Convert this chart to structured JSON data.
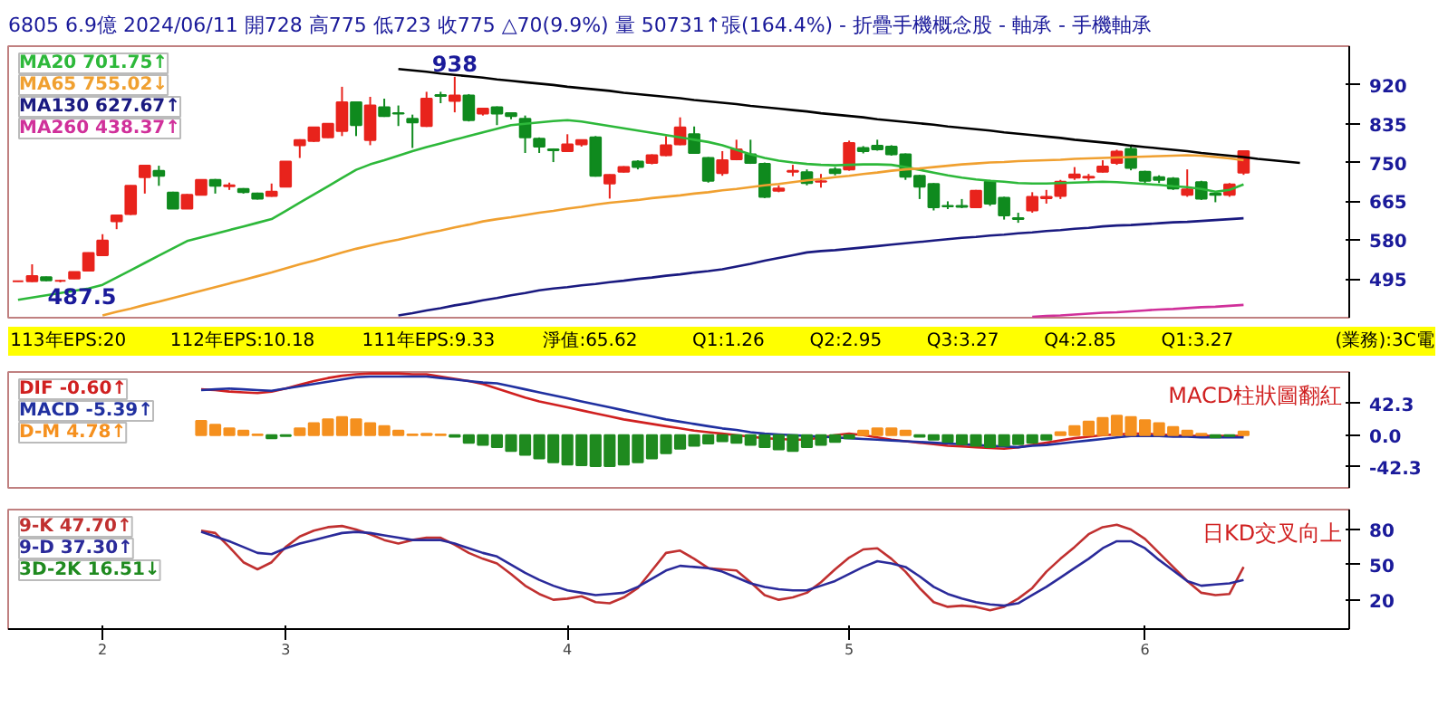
{
  "chart_data": [
    {
      "type": "candlestick",
      "title": "6805 6.9億 2024/06/11 開728 高775 低723 收775 △70(9.9%) 量 50731↑張(164.4%) - 折疊手機概念股 - 軸承 - 手機軸承",
      "categories": [
        null,
        null,
        null,
        null,
        null,
        null,
        "2",
        null,
        null,
        null,
        null,
        null,
        null,
        null,
        null,
        null,
        null,
        null,
        null,
        "3",
        null,
        null,
        null,
        null,
        null,
        null,
        null,
        null,
        null,
        null,
        null,
        null,
        null,
        null,
        null,
        null,
        null,
        null,
        null,
        "4",
        null,
        null,
        null,
        null,
        null,
        null,
        null,
        null,
        null,
        null,
        null,
        null,
        null,
        null,
        null,
        null,
        null,
        null,
        null,
        "5",
        null,
        null,
        null,
        null,
        null,
        null,
        null,
        null,
        null,
        null,
        null,
        null,
        null,
        null,
        null,
        null,
        null,
        null,
        null,
        null,
        "6",
        null,
        null,
        null,
        null,
        null,
        null,
        null,
        null,
        null,
        null,
        null,
        null,
        null,
        null
      ],
      "ohlc": [
        [
          490,
          491,
          489,
          490
        ],
        [
          490,
          527,
          488,
          501
        ],
        [
          499,
          500,
          490,
          492
        ],
        [
          491,
          493,
          487.5,
          491
        ],
        [
          496,
          511,
          495,
          510
        ],
        [
          513,
          553,
          512,
          552
        ],
        [
          547,
          593,
          545,
          579
        ],
        [
          621,
          636,
          604,
          634
        ],
        [
          637,
          700,
          635,
          699
        ],
        [
          718,
          745,
          682,
          743
        ],
        [
          732,
          743,
          699,
          721
        ],
        [
          684,
          686,
          648,
          649
        ],
        [
          649,
          681,
          648,
          679
        ],
        [
          679,
          713,
          678,
          712
        ],
        [
          712,
          714,
          682,
          699
        ],
        [
          698,
          706,
          690,
          700
        ],
        [
          692,
          694,
          682,
          685
        ],
        [
          682,
          684,
          669,
          671
        ],
        [
          677,
          704,
          675,
          686
        ],
        [
          697,
          753,
          696,
          752
        ],
        [
          788,
          801,
          760,
          799
        ],
        [
          797,
          828,
          795,
          827
        ],
        [
          805,
          836,
          804,
          835
        ],
        [
          819,
          916,
          808,
          882
        ],
        [
          882,
          884,
          808,
          832
        ],
        [
          799,
          894,
          788,
          875
        ],
        [
          871,
          890,
          850,
          852
        ],
        [
          858,
          875,
          830,
          857
        ],
        [
          846,
          855,
          782,
          838
        ],
        [
          830,
          905,
          828,
          890
        ],
        [
          898,
          905,
          880,
          896
        ],
        [
          885,
          938,
          860,
          897
        ],
        [
          897,
          900,
          840,
          843
        ],
        [
          857,
          870,
          853,
          868
        ],
        [
          871,
          873,
          832,
          857
        ],
        [
          858,
          860,
          845,
          852
        ],
        [
          846,
          853,
          771,
          805
        ],
        [
          802,
          805,
          771,
          785
        ],
        [
          779,
          781,
          751,
          777
        ],
        [
          775,
          812,
          773,
          790
        ],
        [
          790,
          800,
          785,
          799
        ],
        [
          805,
          808,
          719,
          721
        ],
        [
          704,
          724,
          671,
          723
        ],
        [
          730,
          742,
          728,
          740
        ],
        [
          752,
          755,
          735,
          740
        ],
        [
          749,
          768,
          746,
          766
        ],
        [
          766,
          808,
          764,
          788
        ],
        [
          790,
          849,
          788,
          827
        ],
        [
          812,
          829,
          769,
          771
        ],
        [
          760,
          762,
          706,
          710
        ],
        [
          727,
          775,
          721,
          755
        ],
        [
          757,
          800,
          755,
          779
        ],
        [
          768,
          800,
          747,
          749
        ],
        [
          747,
          750,
          672,
          675
        ],
        [
          688,
          700,
          685,
          693
        ],
        [
          730,
          745,
          720,
          732
        ],
        [
          729,
          735,
          700,
          705
        ],
        [
          708,
          725,
          695,
          709
        ],
        [
          735,
          740,
          722,
          727
        ],
        [
          735,
          798,
          732,
          793
        ],
        [
          782,
          786,
          770,
          775
        ],
        [
          787,
          800,
          776,
          779
        ],
        [
          785,
          788,
          765,
          768
        ],
        [
          768,
          770,
          712,
          719
        ],
        [
          721,
          723,
          670,
          697
        ],
        [
          703,
          705,
          645,
          652
        ],
        [
          655,
          665,
          648,
          654
        ],
        [
          655,
          670,
          650,
          653
        ],
        [
          652,
          690,
          650,
          688
        ],
        [
          708,
          712,
          655,
          660
        ],
        [
          673,
          675,
          625,
          634
        ],
        [
          628,
          640,
          618,
          626
        ],
        [
          645,
          685,
          640,
          675
        ],
        [
          672,
          690,
          660,
          675
        ],
        [
          677,
          712,
          670,
          708
        ],
        [
          717,
          740,
          712,
          724
        ],
        [
          717,
          725,
          710,
          719
        ],
        [
          730,
          755,
          728,
          741
        ],
        [
          749,
          778,
          745,
          774
        ],
        [
          780,
          785,
          733,
          738
        ],
        [
          730,
          732,
          705,
          710
        ],
        [
          718,
          722,
          705,
          712
        ],
        [
          715,
          718,
          690,
          693
        ],
        [
          679,
          735,
          675,
          691
        ],
        [
          707,
          710,
          668,
          671
        ],
        [
          682,
          685,
          663,
          679
        ],
        [
          679,
          705,
          675,
          702
        ],
        [
          728,
          775,
          723,
          775
        ],
        null,
        null,
        null,
        null,
        null,
        null,
        null
      ],
      "colors": [
        "#e8231c",
        "#e8231c",
        "#0f8a1e",
        "#e8231c",
        "#e8231c",
        "#e8231c",
        "#e8231c",
        "#e8231c",
        "#e8231c",
        "#e8231c",
        "#0f8a1e",
        "#0f8a1e",
        "#e8231c",
        "#e8231c",
        "#0f8a1e",
        "#e8231c",
        "#0f8a1e",
        "#0f8a1e",
        "#e8231c",
        "#e8231c",
        "#e8231c",
        "#e8231c",
        "#e8231c",
        "#e8231c",
        "#0f8a1e",
        "#e8231c",
        "#0f8a1e",
        "#0f8a1e",
        "#0f8a1e",
        "#e8231c",
        "#0f8a1e",
        "#e8231c",
        "#0f8a1e",
        "#e8231c",
        "#0f8a1e",
        "#0f8a1e",
        "#0f8a1e",
        "#0f8a1e",
        "#0f8a1e",
        "#e8231c",
        "#e8231c",
        "#0f8a1e",
        "#e8231c",
        "#e8231c",
        "#0f8a1e",
        "#e8231c",
        "#e8231c",
        "#e8231c",
        "#0f8a1e",
        "#0f8a1e",
        "#e8231c",
        "#e8231c",
        "#0f8a1e",
        "#0f8a1e",
        "#e8231c",
        "#e8231c",
        "#0f8a1e",
        "#e8231c",
        "#0f8a1e",
        "#e8231c",
        "#0f8a1e",
        "#0f8a1e",
        "#0f8a1e",
        "#0f8a1e",
        "#0f8a1e",
        "#0f8a1e",
        "#0f8a1e",
        "#0f8a1e",
        "#e8231c",
        "#0f8a1e",
        "#0f8a1e",
        "#0f8a1e",
        "#e8231c",
        "#e8231c",
        "#e8231c",
        "#e8231c",
        "#e8231c",
        "#e8231c",
        "#e8231c",
        "#0f8a1e",
        "#0f8a1e",
        "#0f8a1e",
        "#0f8a1e",
        "#e8231c",
        "#0f8a1e",
        "#0f8a1e",
        "#e8231c",
        "#e8231c",
        null,
        null,
        null,
        null,
        null,
        null,
        null
      ],
      "series": [
        {
          "name": "MA20 701.75↑",
          "type": "line",
          "color": "#2db83a",
          "values": [
            449,
            454,
            459,
            464,
            469,
            474,
            482,
            498,
            514,
            530,
            546,
            562,
            578,
            586,
            594,
            602,
            610,
            618,
            626,
            644,
            662,
            680,
            698,
            716,
            734,
            746,
            755,
            765,
            775,
            784,
            792,
            800,
            808,
            816,
            824,
            832,
            835,
            838,
            841,
            843,
            840,
            835,
            830,
            825,
            820,
            815,
            810,
            805,
            800,
            795,
            788,
            778,
            768,
            760,
            754,
            750,
            747,
            745,
            744,
            745,
            746,
            746,
            745,
            740,
            734,
            728,
            722,
            717,
            713,
            710,
            708,
            705,
            704,
            704,
            705,
            706,
            707,
            708,
            707,
            705,
            703,
            701,
            698,
            696,
            692,
            686,
            690,
            702,
            null,
            null,
            null,
            null,
            null,
            null,
            null
          ]
        },
        {
          "name": "MA65 755.02↓",
          "type": "line",
          "color": "#f0a030",
          "values": [
            null,
            null,
            null,
            null,
            null,
            null,
            415,
            423,
            430,
            438,
            445,
            453,
            461,
            469,
            477,
            485,
            493,
            501,
            509,
            518,
            527,
            535,
            544,
            553,
            561,
            568,
            575,
            581,
            588,
            595,
            601,
            608,
            614,
            621,
            626,
            630,
            635,
            640,
            644,
            649,
            653,
            658,
            662,
            665,
            668,
            672,
            675,
            678,
            682,
            685,
            689,
            692,
            696,
            700,
            703,
            707,
            711,
            714,
            718,
            721,
            725,
            728,
            732,
            735,
            737,
            740,
            743,
            746,
            748,
            750,
            751,
            753,
            754,
            755,
            756,
            758,
            759,
            760,
            761,
            762,
            763,
            764,
            765,
            766,
            765,
            762,
            759,
            755,
            null,
            null,
            null,
            null,
            null,
            null,
            null
          ]
        },
        {
          "name": "MA130 627.67↑",
          "type": "line",
          "color": "#1a1a80",
          "values": [
            null,
            null,
            null,
            null,
            null,
            null,
            null,
            null,
            null,
            null,
            null,
            null,
            null,
            null,
            null,
            null,
            null,
            null,
            null,
            null,
            null,
            null,
            null,
            null,
            null,
            null,
            null,
            415,
            420,
            426,
            431,
            437,
            442,
            448,
            453,
            459,
            464,
            470,
            474,
            477,
            481,
            484,
            488,
            491,
            495,
            498,
            502,
            505,
            509,
            512,
            516,
            522,
            528,
            535,
            541,
            547,
            553,
            556,
            558,
            561,
            564,
            567,
            570,
            573,
            576,
            579,
            582,
            585,
            587,
            590,
            592,
            595,
            597,
            600,
            602,
            605,
            607,
            610,
            612,
            613,
            615,
            617,
            619,
            620,
            622,
            624,
            626,
            628,
            null,
            null,
            null,
            null,
            null,
            null,
            null
          ]
        },
        {
          "name": "MA260 438.37↑",
          "type": "line",
          "color": "#d0309a",
          "values": [
            null,
            null,
            null,
            null,
            null,
            null,
            null,
            null,
            null,
            null,
            null,
            null,
            null,
            null,
            null,
            null,
            null,
            null,
            null,
            null,
            null,
            null,
            null,
            null,
            null,
            null,
            null,
            null,
            null,
            null,
            null,
            null,
            null,
            null,
            null,
            null,
            null,
            null,
            null,
            null,
            null,
            null,
            null,
            null,
            null,
            null,
            null,
            null,
            null,
            null,
            null,
            null,
            null,
            null,
            null,
            null,
            null,
            null,
            null,
            null,
            null,
            null,
            null,
            null,
            null,
            null,
            null,
            null,
            null,
            null,
            null,
            null,
            412,
            414,
            415,
            417,
            419,
            421,
            422,
            424,
            426,
            428,
            429,
            431,
            433,
            434,
            436,
            438,
            null,
            null,
            null,
            null,
            null,
            null,
            null
          ]
        },
        {
          "type": "line",
          "color": "#000000",
          "values": [
            null,
            null,
            null,
            null,
            null,
            null,
            null,
            null,
            null,
            null,
            null,
            null,
            null,
            null,
            null,
            null,
            null,
            null,
            null,
            null,
            null,
            null,
            null,
            null,
            null,
            null,
            null,
            955,
            952,
            949,
            945,
            942,
            939,
            936,
            932,
            929,
            926,
            923,
            920,
            916,
            913,
            910,
            907,
            903,
            900,
            897,
            894,
            891,
            887,
            884,
            881,
            878,
            874,
            871,
            868,
            865,
            862,
            858,
            855,
            852,
            849,
            845,
            842,
            839,
            836,
            833,
            829,
            826,
            823,
            820,
            816,
            813,
            810,
            807,
            804,
            800,
            797,
            794,
            791,
            787,
            784,
            781,
            778,
            775,
            771,
            768,
            765,
            762,
            758,
            755,
            752,
            749,
            null,
            null,
            null
          ]
        }
      ],
      "annotations": [
        {
          "text": "938",
          "y": 938
        },
        {
          "text": "487.5",
          "y": 487.5
        }
      ],
      "ylim": [
        410,
        1005
      ],
      "yticks": [
        495,
        580,
        665,
        750,
        835,
        920
      ],
      "tick_labels": "y",
      "legend": "top left"
    },
    {
      "type": "other",
      "annotations": [
        "113年EPS:20",
        "112年EPS:10.18",
        "111年EPS:9.33",
        "淨值:65.62",
        "Q1:1.26",
        "Q2:2.95",
        "Q3:3.27",
        "Q4:2.85",
        "Q1:3.27",
        "(業務):3C電"
      ]
    },
    {
      "type": "bar",
      "categories": [
        null,
        null,
        null,
        null,
        null,
        null,
        "2",
        null,
        null,
        null,
        null,
        null,
        null,
        null,
        null,
        null,
        null,
        null,
        null,
        "3",
        null,
        null,
        null,
        null,
        null,
        null,
        null,
        null,
        null,
        null,
        null,
        null,
        null,
        null,
        null,
        null,
        null,
        null,
        null,
        "4",
        null,
        null,
        null,
        null,
        null,
        null,
        null,
        null,
        null,
        null,
        null,
        null,
        null,
        null,
        null,
        null,
        null,
        null,
        null,
        "5",
        null,
        null,
        null,
        null,
        null,
        null,
        null,
        null,
        null,
        null,
        null,
        null,
        null,
        null,
        null,
        null,
        null,
        null,
        null,
        null,
        "6",
        null,
        null,
        null,
        null,
        null,
        null,
        null,
        null,
        null,
        null,
        null,
        null,
        null,
        null
      ],
      "series": [
        {
          "name": "DIF -0.60↑",
          "type": "line",
          "color": "#d02020",
          "values": [
            null,
            null,
            null,
            null,
            null,
            null,
            null,
            null,
            null,
            null,
            null,
            null,
            null,
            61,
            60,
            58,
            57,
            56,
            58,
            62,
            67,
            72,
            76,
            79,
            81,
            82,
            82,
            82,
            81,
            81,
            78,
            75,
            72,
            68,
            62,
            56,
            50,
            45,
            41,
            37,
            33,
            29,
            25,
            21,
            18,
            15,
            12,
            9,
            6,
            4,
            2,
            0,
            -2,
            -4,
            -5,
            -6,
            -6,
            -3,
            0,
            2,
            0,
            -3,
            -6,
            -8,
            -10,
            -12,
            -14,
            -15,
            -16,
            -17,
            -18,
            -16,
            -13,
            -10,
            -7,
            -4,
            -2,
            0,
            1,
            2,
            2,
            1,
            0,
            -1,
            -1,
            -1,
            -1,
            -1,
            null,
            null,
            null,
            null,
            null,
            null,
            null
          ]
        },
        {
          "name": "MACD -5.39↑",
          "type": "line",
          "color": "#2030a0",
          "values": [
            null,
            null,
            null,
            null,
            null,
            null,
            null,
            null,
            null,
            null,
            null,
            null,
            null,
            60,
            61,
            62,
            61,
            60,
            59,
            62,
            65,
            68,
            71,
            74,
            77,
            78,
            78,
            78,
            78,
            78,
            76,
            74,
            72,
            70,
            69,
            65,
            61,
            57,
            53,
            49,
            45,
            41,
            37,
            33,
            29,
            25,
            21,
            18,
            15,
            12,
            9,
            7,
            4,
            2,
            1,
            0,
            -1,
            -2,
            -3,
            -4,
            -5,
            -6,
            -7,
            -8,
            -9,
            -10,
            -11,
            -12,
            -13,
            -14,
            -15,
            -16,
            -14,
            -13,
            -11,
            -9,
            -7,
            -5,
            -3,
            -1,
            -1,
            -1,
            -2,
            -2,
            -3,
            -3,
            -3,
            -3,
            null,
            null,
            null,
            null,
            null,
            null,
            null
          ]
        },
        {
          "name": "D-M 4.78↑",
          "type": "bar",
          "color": "#f5901e",
          "values": [
            null,
            null,
            null,
            null,
            null,
            null,
            null,
            null,
            null,
            null,
            null,
            null,
            null,
            19,
            14,
            9,
            6,
            1,
            -4,
            -1,
            9,
            16,
            21,
            24,
            21,
            16,
            12,
            6,
            1,
            2,
            1,
            -2,
            -10,
            -13,
            -16,
            -21,
            -26,
            -31,
            -36,
            -39,
            -40,
            -41,
            -41,
            -39,
            -36,
            -31,
            -24,
            -18,
            -14,
            -11,
            -8,
            -10,
            -13,
            -16,
            -19,
            -21,
            -16,
            -13,
            -9,
            -4,
            6,
            9,
            9,
            6,
            -2,
            -6,
            -9,
            -12,
            -14,
            -16,
            -14,
            -12,
            -10,
            -6,
            4,
            12,
            18,
            23,
            26,
            24,
            20,
            16,
            11,
            6,
            2,
            -3,
            -1,
            5,
            null,
            null,
            null,
            null,
            null,
            null,
            null
          ],
          "colors": [
            null,
            null,
            null,
            null,
            null,
            null,
            null,
            null,
            null,
            null,
            null,
            null,
            null,
            "#f5901e",
            "#f5901e",
            "#f5901e",
            "#f5901e",
            "#f5901e",
            "#1f8a1f",
            "#1f8a1f",
            "#f5901e",
            "#f5901e",
            "#f5901e",
            "#f5901e",
            "#f5901e",
            "#f5901e",
            "#f5901e",
            "#f5901e",
            "#f5901e",
            "#f5901e",
            "#f5901e",
            "#1f8a1f",
            "#1f8a1f",
            "#1f8a1f",
            "#1f8a1f",
            "#1f8a1f",
            "#1f8a1f",
            "#1f8a1f",
            "#1f8a1f",
            "#1f8a1f",
            "#1f8a1f",
            "#1f8a1f",
            "#1f8a1f",
            "#1f8a1f",
            "#1f8a1f",
            "#1f8a1f",
            "#1f8a1f",
            "#1f8a1f",
            "#1f8a1f",
            "#1f8a1f",
            "#1f8a1f",
            "#1f8a1f",
            "#1f8a1f",
            "#1f8a1f",
            "#1f8a1f",
            "#1f8a1f",
            "#1f8a1f",
            "#1f8a1f",
            "#1f8a1f",
            "#1f8a1f",
            "#f5901e",
            "#f5901e",
            "#f5901e",
            "#f5901e",
            "#1f8a1f",
            "#1f8a1f",
            "#1f8a1f",
            "#1f8a1f",
            "#1f8a1f",
            "#1f8a1f",
            "#1f8a1f",
            "#1f8a1f",
            "#1f8a1f",
            "#1f8a1f",
            "#f5901e",
            "#f5901e",
            "#f5901e",
            "#f5901e",
            "#f5901e",
            "#f5901e",
            "#f5901e",
            "#f5901e",
            "#f5901e",
            "#f5901e",
            "#f5901e",
            "#1f8a1f",
            "#1f8a1f",
            "#f5901e",
            null,
            null,
            null,
            null,
            null,
            null,
            null
          ]
        }
      ],
      "annotations": [
        "MACD柱狀圖翻紅"
      ],
      "ylim": [
        -70,
        84
      ],
      "yticks": [
        {
          "value": 42.3,
          "label": "42.3"
        },
        {
          "value": 0,
          "label": "0.0"
        },
        {
          "value": -42.3,
          "label": "-42.3"
        }
      ],
      "tick_labels": "y",
      "legend": "top left"
    },
    {
      "type": "line",
      "categories": [
        null,
        null,
        null,
        null,
        null,
        null,
        "2",
        null,
        null,
        null,
        null,
        null,
        null,
        null,
        null,
        null,
        null,
        null,
        null,
        "3",
        null,
        null,
        null,
        null,
        null,
        null,
        null,
        null,
        null,
        null,
        null,
        null,
        null,
        null,
        null,
        null,
        null,
        null,
        null,
        "4",
        null,
        null,
        null,
        null,
        null,
        null,
        null,
        null,
        null,
        null,
        null,
        null,
        null,
        null,
        null,
        null,
        null,
        null,
        null,
        "5",
        null,
        null,
        null,
        null,
        null,
        null,
        null,
        null,
        null,
        null,
        null,
        null,
        null,
        null,
        null,
        null,
        null,
        null,
        null,
        null,
        "6",
        null,
        null,
        null,
        null,
        null,
        null,
        null,
        null,
        null,
        null,
        null,
        null,
        null,
        null
      ],
      "series": [
        {
          "name": "9-K 47.70↑",
          "color": "#c03030",
          "values": [
            null,
            null,
            null,
            null,
            null,
            null,
            null,
            null,
            null,
            null,
            null,
            null,
            null,
            79,
            77,
            65,
            52,
            46,
            52,
            65,
            74,
            79,
            82,
            83,
            80,
            76,
            71,
            68,
            71,
            73,
            73,
            67,
            60,
            55,
            51,
            42,
            32,
            25,
            20,
            21,
            23,
            18,
            17,
            22,
            30,
            45,
            60,
            62,
            55,
            47,
            46,
            45,
            35,
            24,
            20,
            22,
            26,
            35,
            46,
            56,
            63,
            64,
            55,
            44,
            30,
            18,
            14,
            15,
            14,
            11,
            14,
            21,
            30,
            44,
            55,
            65,
            76,
            82,
            84,
            80,
            72,
            60,
            48,
            36,
            26,
            24,
            25,
            48,
            null,
            null,
            null,
            null,
            null,
            null,
            null
          ]
        },
        {
          "name": "9-D 37.30↑",
          "color": "#2a2a9a",
          "values": [
            null,
            null,
            null,
            null,
            null,
            null,
            null,
            null,
            null,
            null,
            null,
            null,
            null,
            78,
            74,
            70,
            65,
            60,
            59,
            64,
            68,
            71,
            74,
            77,
            78,
            77,
            75,
            73,
            71,
            71,
            71,
            68,
            64,
            60,
            57,
            50,
            43,
            37,
            32,
            28,
            26,
            24,
            25,
            26,
            31,
            38,
            45,
            49,
            48,
            47,
            44,
            39,
            34,
            31,
            29,
            28,
            28,
            32,
            36,
            42,
            48,
            53,
            51,
            48,
            40,
            31,
            25,
            21,
            18,
            16,
            15,
            17,
            24,
            31,
            39,
            47,
            55,
            64,
            70,
            70,
            64,
            54,
            45,
            36,
            32,
            33,
            34,
            37,
            null,
            null,
            null,
            null,
            null,
            null,
            null
          ]
        }
      ],
      "annotations": [
        "日KD交叉向上",
        "3D-2K 16.51↓"
      ],
      "ylim": [
        -5,
        97
      ],
      "yticks": [
        20,
        50,
        80
      ],
      "legend": "top left"
    }
  ]
}
